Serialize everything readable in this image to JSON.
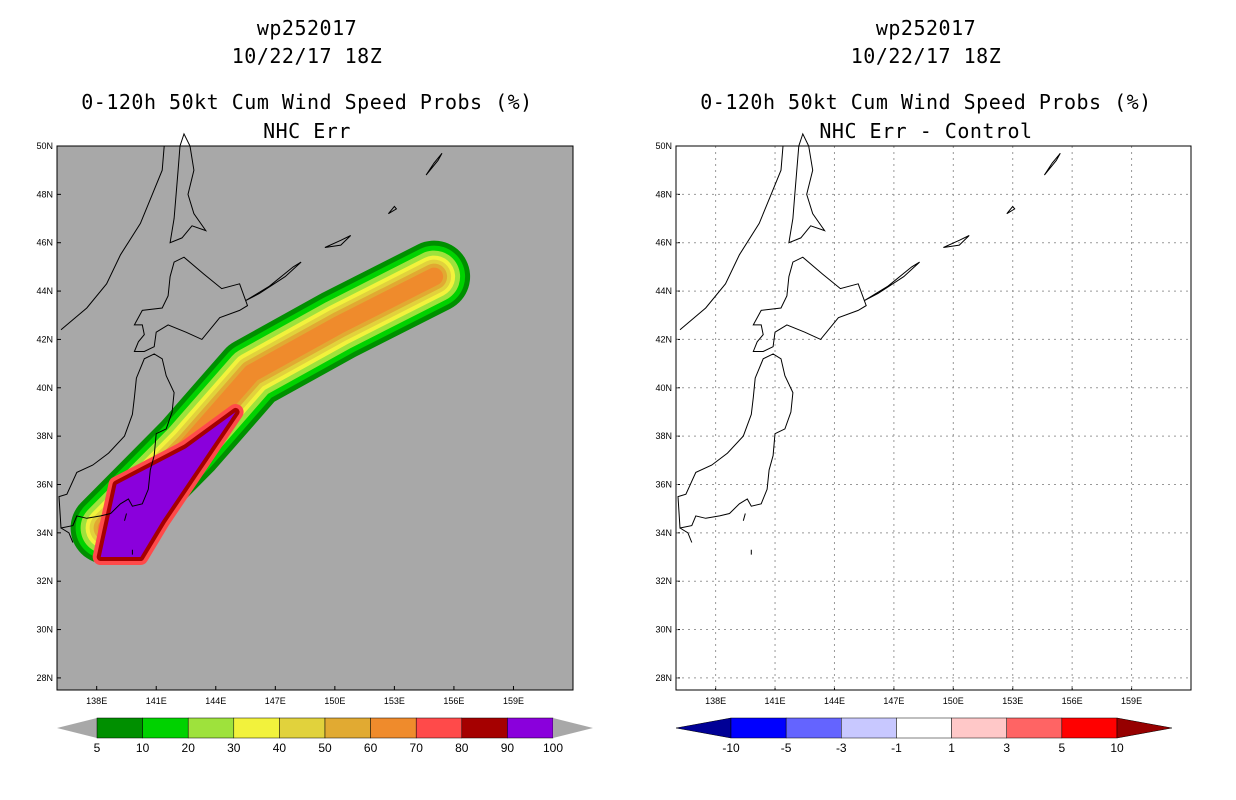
{
  "left": {
    "storm_id": "wp252017",
    "datetime": "10/22/17 18Z",
    "title": "0-120h 50kt Cum Wind Speed Probs (%)",
    "subtitle": "NHC Err"
  },
  "right": {
    "storm_id": "wp252017",
    "datetime": "10/22/17 18Z",
    "title": "0-120h 50kt Cum Wind Speed Probs (%)",
    "subtitle": "NHC Err - Control"
  },
  "chart_data": [
    {
      "type": "heatmap",
      "panel": "left",
      "title": "0-120h 50kt Cum Wind Speed Probs (%)",
      "subtitle": "NHC Err",
      "lon_range": [
        136,
        162
      ],
      "lat_range": [
        27.5,
        50
      ],
      "lon_ticks": [
        "138E",
        "141E",
        "144E",
        "147E",
        "150E",
        "153E",
        "156E",
        "159E"
      ],
      "lat_ticks": [
        "50N",
        "48N",
        "46N",
        "44N",
        "42N",
        "40N",
        "38N",
        "36N",
        "34N",
        "32N",
        "30N",
        "28N"
      ],
      "grid": false,
      "background_color": "#a8a8a8",
      "colorbar": {
        "labels": [
          "5",
          "10",
          "20",
          "30",
          "40",
          "50",
          "60",
          "70",
          "80",
          "90",
          "100"
        ],
        "colors": [
          "#008f00",
          "#00d200",
          "#9ee23c",
          "#f2f23c",
          "#e1d23c",
          "#e1aa32",
          "#ef8b2c",
          "#ff4a4a",
          "#a50000",
          "#8a00dc"
        ]
      },
      "swath_track": [
        [
          138.5,
          34.2
        ],
        [
          142.6,
          37.6
        ],
        [
          145.8,
          40.6
        ],
        [
          150.2,
          42.6
        ],
        [
          155,
          44.6
        ]
      ],
      "max_probability_region_lonlat": [
        [
          138.2,
          33.0
        ],
        [
          140.2,
          33.0
        ],
        [
          141.3,
          34.5
        ],
        [
          145,
          39.0
        ],
        [
          142.5,
          37.5
        ],
        [
          139.0,
          36.0
        ]
      ]
    },
    {
      "type": "heatmap",
      "panel": "right",
      "title": "0-120h 50kt Cum Wind Speed Probs (%)",
      "subtitle": "NHC Err - Control",
      "lon_range": [
        136,
        162
      ],
      "lat_range": [
        27.5,
        50
      ],
      "lon_ticks": [
        "138E",
        "141E",
        "144E",
        "147E",
        "150E",
        "153E",
        "156E",
        "159E"
      ],
      "lat_ticks": [
        "50N",
        "48N",
        "46N",
        "44N",
        "42N",
        "40N",
        "38N",
        "36N",
        "34N",
        "32N",
        "30N",
        "28N"
      ],
      "grid": true,
      "values": "all differences between -1 and 1",
      "colorbar": {
        "labels": [
          "-10",
          "-5",
          "-3",
          "-1",
          "1",
          "3",
          "5",
          "10"
        ],
        "colors": [
          "#000096",
          "#0000ff",
          "#6464ff",
          "#c8c8ff",
          "#ffffff",
          "#ffc8c8",
          "#ff6464",
          "#ff0000",
          "#960000"
        ]
      }
    }
  ]
}
